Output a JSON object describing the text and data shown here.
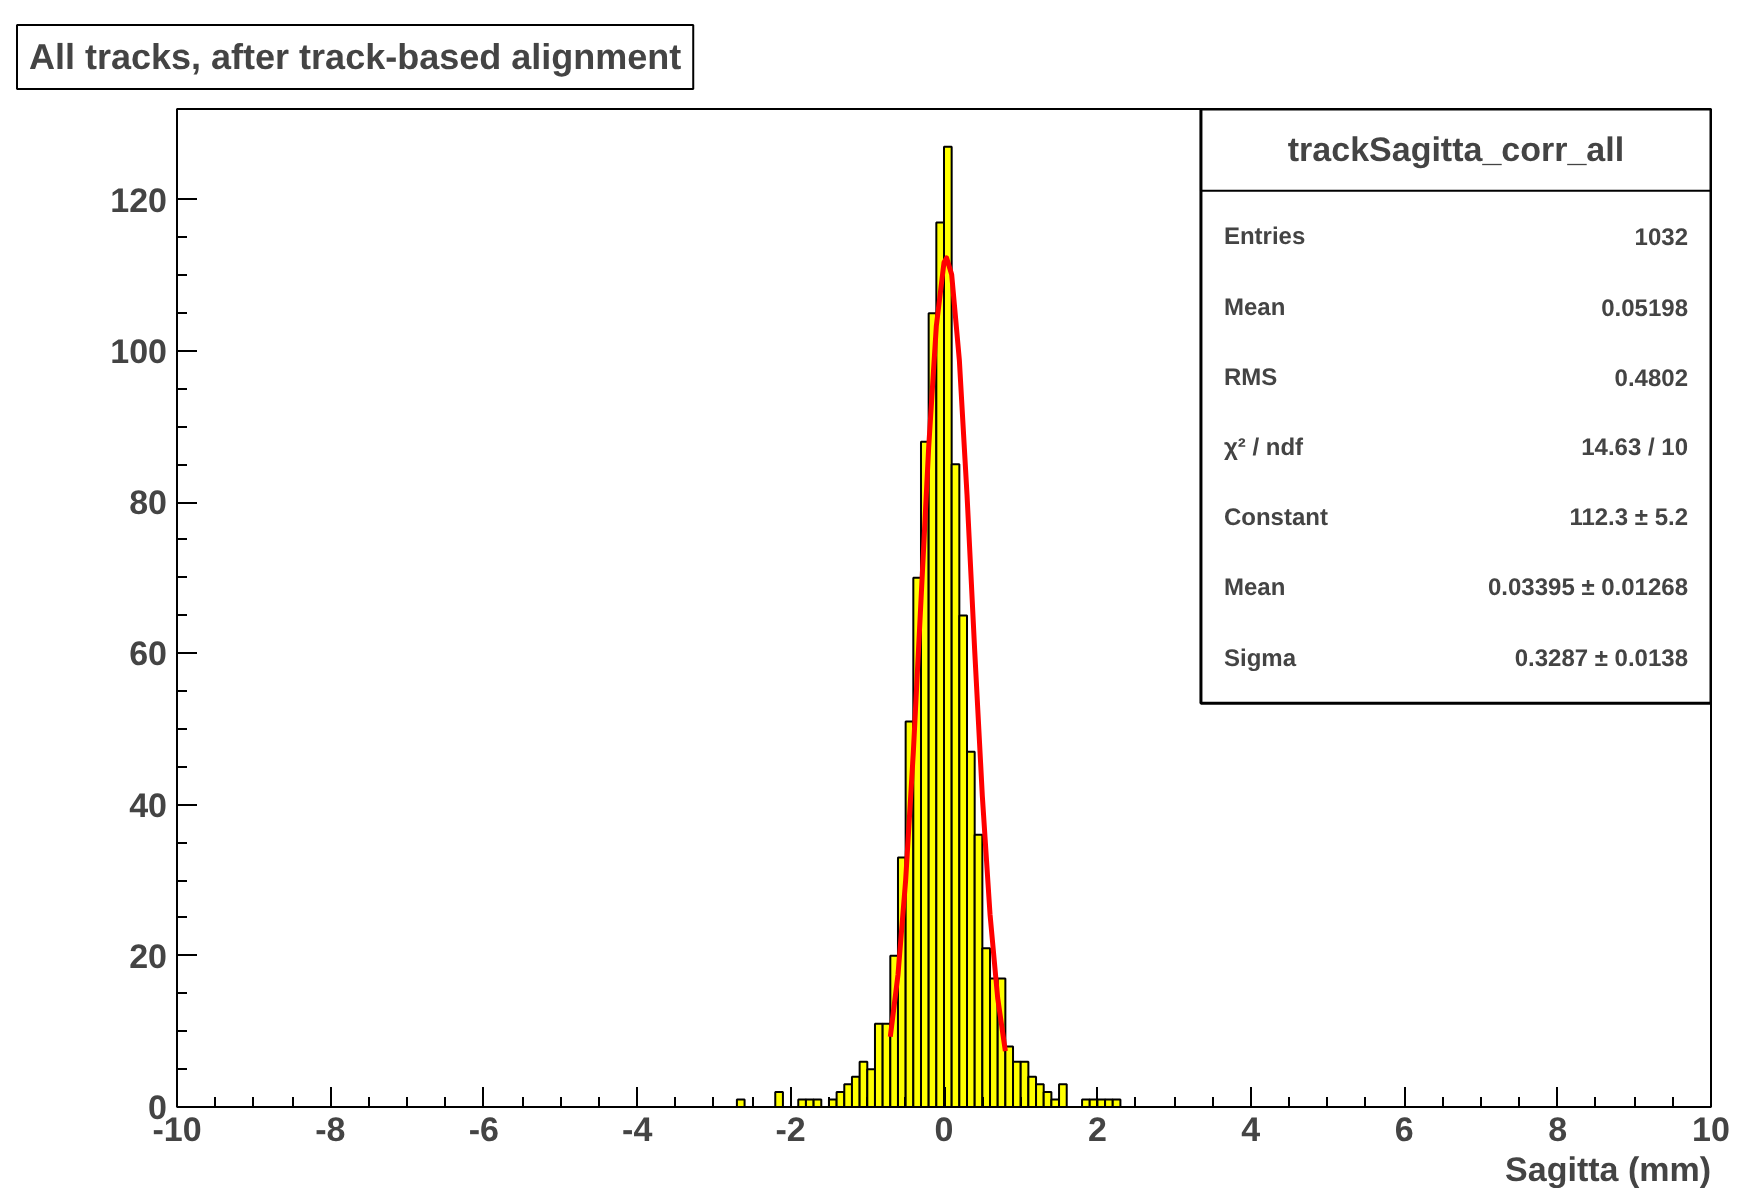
{
  "chart_data": {
    "type": "histogram",
    "title": "All tracks, after track-based alignment",
    "xlabel": "Sagitta (mm)",
    "xlim": [
      -10,
      10
    ],
    "xticks": [
      -10,
      -8,
      -6,
      -4,
      -2,
      0,
      2,
      4,
      6,
      8,
      10
    ],
    "ylim": [
      0,
      132
    ],
    "yticks": [
      0,
      20,
      40,
      60,
      80,
      100,
      120
    ],
    "grid": false,
    "series": [
      {
        "type": "histogram",
        "color": "#ffff00",
        "bins": [
          -2.7,
          -2.6,
          -2.5,
          -2.4,
          -2.3,
          -2.2,
          -2.1,
          -2.0,
          -1.9,
          -1.8,
          -1.7,
          -1.6,
          -1.5,
          -1.4,
          -1.3,
          -1.2,
          -1.1,
          -1.0,
          -0.9,
          -0.8,
          -0.7,
          -0.6,
          -0.5,
          -0.4,
          -0.3,
          -0.2,
          -0.1,
          0.0,
          0.1,
          0.2,
          0.3,
          0.4,
          0.5,
          0.6,
          0.7,
          0.8,
          0.9,
          1.0,
          1.1,
          1.2,
          1.3,
          1.4,
          1.5,
          1.6,
          1.7,
          1.8,
          1.9,
          2.0,
          2.1,
          2.2,
          2.3,
          2.4
        ],
        "values": [
          1,
          0,
          0,
          0,
          0,
          2,
          0,
          0,
          1,
          1,
          1,
          0,
          1,
          2,
          3,
          4,
          6,
          5,
          11,
          11,
          20,
          33,
          51,
          70,
          88,
          105,
          117,
          127,
          85,
          65,
          47,
          36,
          21,
          17,
          17,
          8,
          6,
          6,
          4,
          3,
          2,
          1,
          3,
          0,
          0,
          1,
          1,
          1,
          1,
          1,
          0
        ]
      },
      {
        "type": "line",
        "color": "#ff0000",
        "x": [
          -0.7,
          -0.6,
          -0.5,
          -0.4,
          -0.3,
          -0.2,
          -0.1,
          0.0,
          0.034,
          0.1,
          0.2,
          0.3,
          0.4,
          0.5,
          0.6,
          0.7,
          0.8
        ],
        "values": [
          9.3,
          17.5,
          30.0,
          46.9,
          67.0,
          87.2,
          103.3,
          111.7,
          112.3,
          110.1,
          98.8,
          81.0,
          60.4,
          41.1,
          25.5,
          14.4,
          7.4
        ]
      }
    ],
    "annotations": [
      "trackSagitta_corr_all",
      "Entries",
      "1032",
      "Mean",
      "0.05198",
      "RMS",
      "0.4802",
      "χ² / ndf",
      "14.63 / 10",
      "Constant",
      "112.3 ± 5.2",
      "Mean",
      "0.03395 ± 0.01268",
      "Sigma",
      "0.3287 ± 0.0138"
    ]
  }
}
